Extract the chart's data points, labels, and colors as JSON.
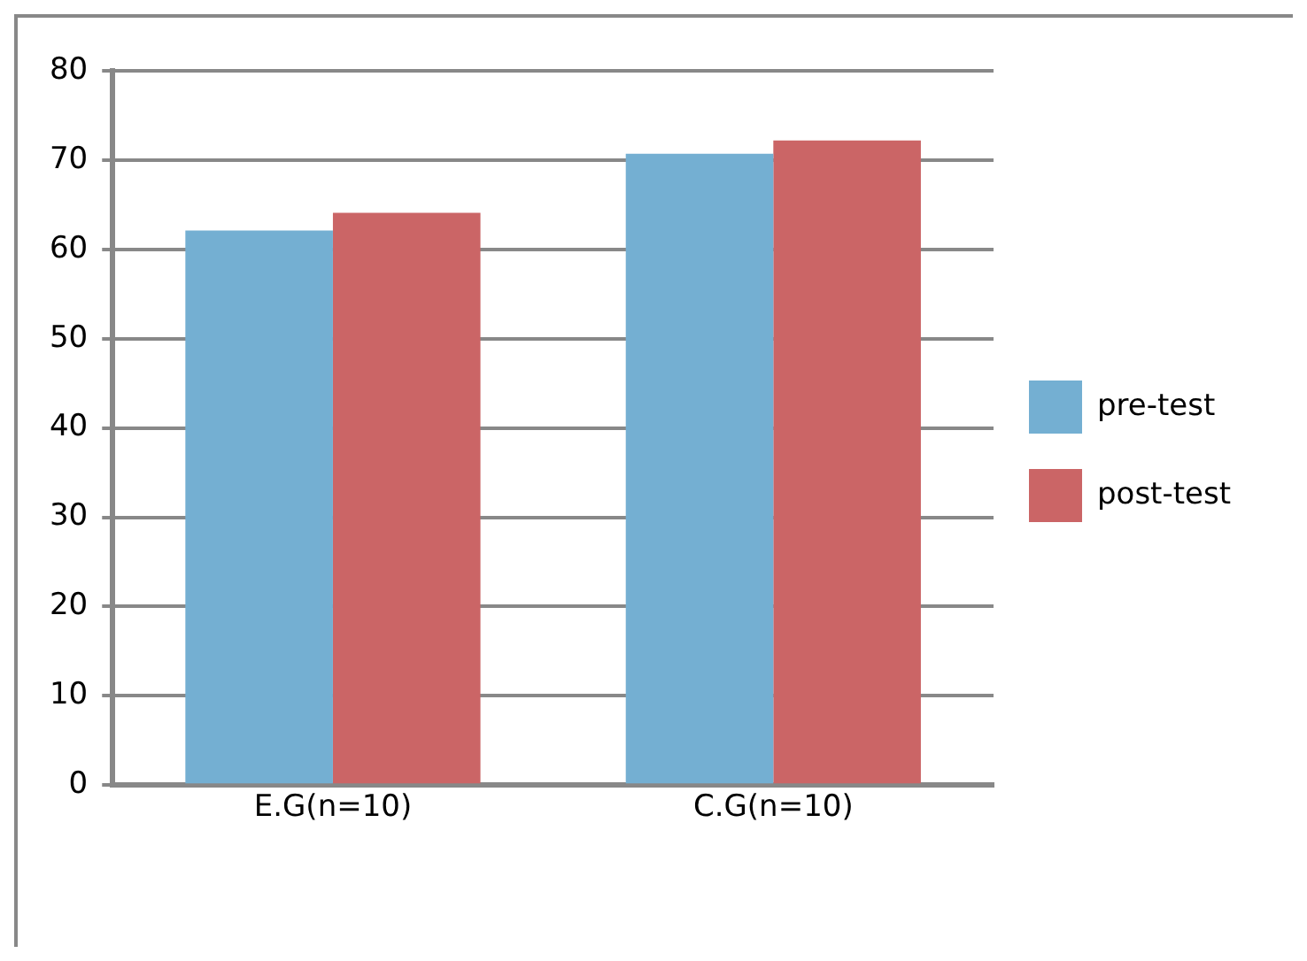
{
  "chart_data": {
    "type": "bar",
    "categories": [
      "E.G(n=10)",
      "C.G(n=10)"
    ],
    "series": [
      {
        "name": "pre-test",
        "color": "#74afd2",
        "values": [
          62.1,
          70.7
        ]
      },
      {
        "name": "post-test",
        "color": "#cb6566",
        "values": [
          64.1,
          72.2
        ]
      }
    ],
    "ylim": [
      0,
      80
    ],
    "yticks": [
      0,
      10,
      20,
      30,
      40,
      50,
      60,
      70,
      80
    ],
    "grid": "y",
    "legend": "right"
  }
}
